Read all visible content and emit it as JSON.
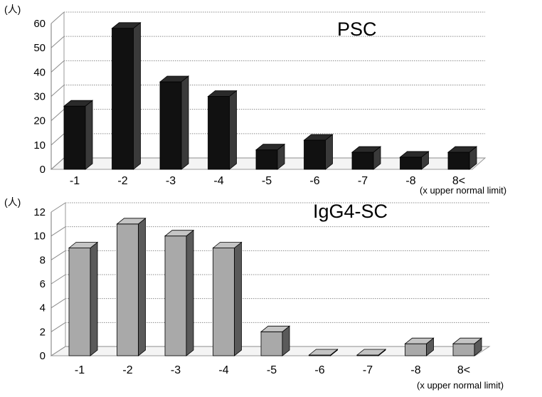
{
  "chart_data": [
    {
      "type": "bar",
      "title": "PSC",
      "unit_label": "(人)",
      "axis_note": "(x upper normal limit)",
      "categories": [
        "-1",
        "-2",
        "-3",
        "-4",
        "-5",
        "-6",
        "-7",
        "-8",
        "8<"
      ],
      "values": [
        26,
        58,
        36,
        30,
        8,
        12,
        7,
        5,
        7
      ],
      "yticks": [
        "0",
        "10",
        "20",
        "30",
        "40",
        "50",
        "60"
      ],
      "ylim": [
        0,
        60
      ],
      "grid": true,
      "colors": {
        "front": "#111111",
        "side": "#3a3a3a",
        "top": "#2a2a2a"
      }
    },
    {
      "type": "bar",
      "title": "IgG4-SC",
      "unit_label": "(人)",
      "axis_note": "(x upper normal limit)",
      "categories": [
        "-1",
        "-2",
        "-3",
        "-4",
        "-5",
        "-6",
        "-7",
        "-8",
        "8<"
      ],
      "values": [
        9,
        11,
        10,
        9,
        2,
        0,
        0,
        1,
        1
      ],
      "yticks": [
        "0",
        "2",
        "4",
        "6",
        "8",
        "10",
        "12"
      ],
      "ylim": [
        0,
        12
      ],
      "grid": true,
      "colors": {
        "front": "#a9a9a9",
        "side": "#5a5a5a",
        "top": "#c4c4c4"
      }
    }
  ]
}
